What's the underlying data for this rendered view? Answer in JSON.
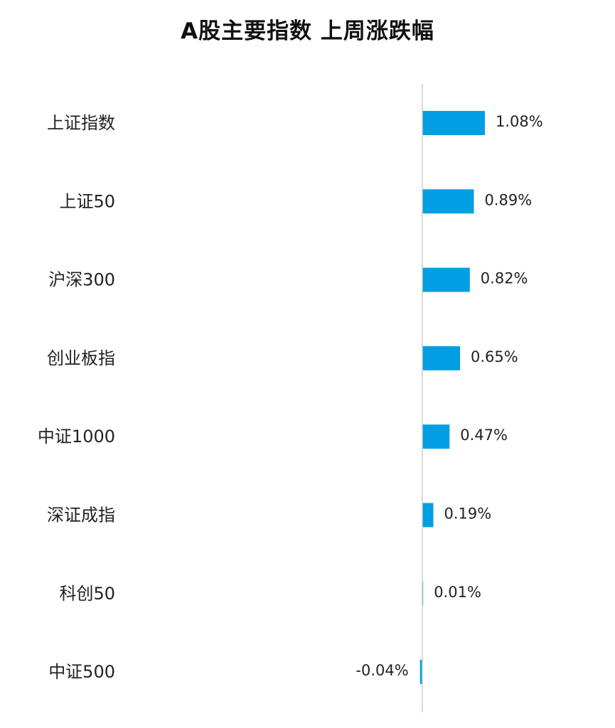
{
  "chart_data": {
    "type": "bar",
    "orientation": "horizontal",
    "title": "A股主要指数 上周涨跌幅",
    "categories": [
      "上证指数",
      "上证50",
      "沪深300",
      "创业板指",
      "中证1000",
      "深证成指",
      "科创50",
      "中证500"
    ],
    "values": [
      1.08,
      0.89,
      0.82,
      0.65,
      0.47,
      0.19,
      0.01,
      -0.04
    ],
    "value_labels": [
      "1.08%",
      "0.89%",
      "0.82%",
      "0.65%",
      "0.47%",
      "0.19%",
      "0.01%",
      "-0.04%"
    ],
    "unit": "%",
    "bar_color": "#009FE3",
    "axis_color": "#CCCCCC",
    "grid": false,
    "legend": "none"
  }
}
